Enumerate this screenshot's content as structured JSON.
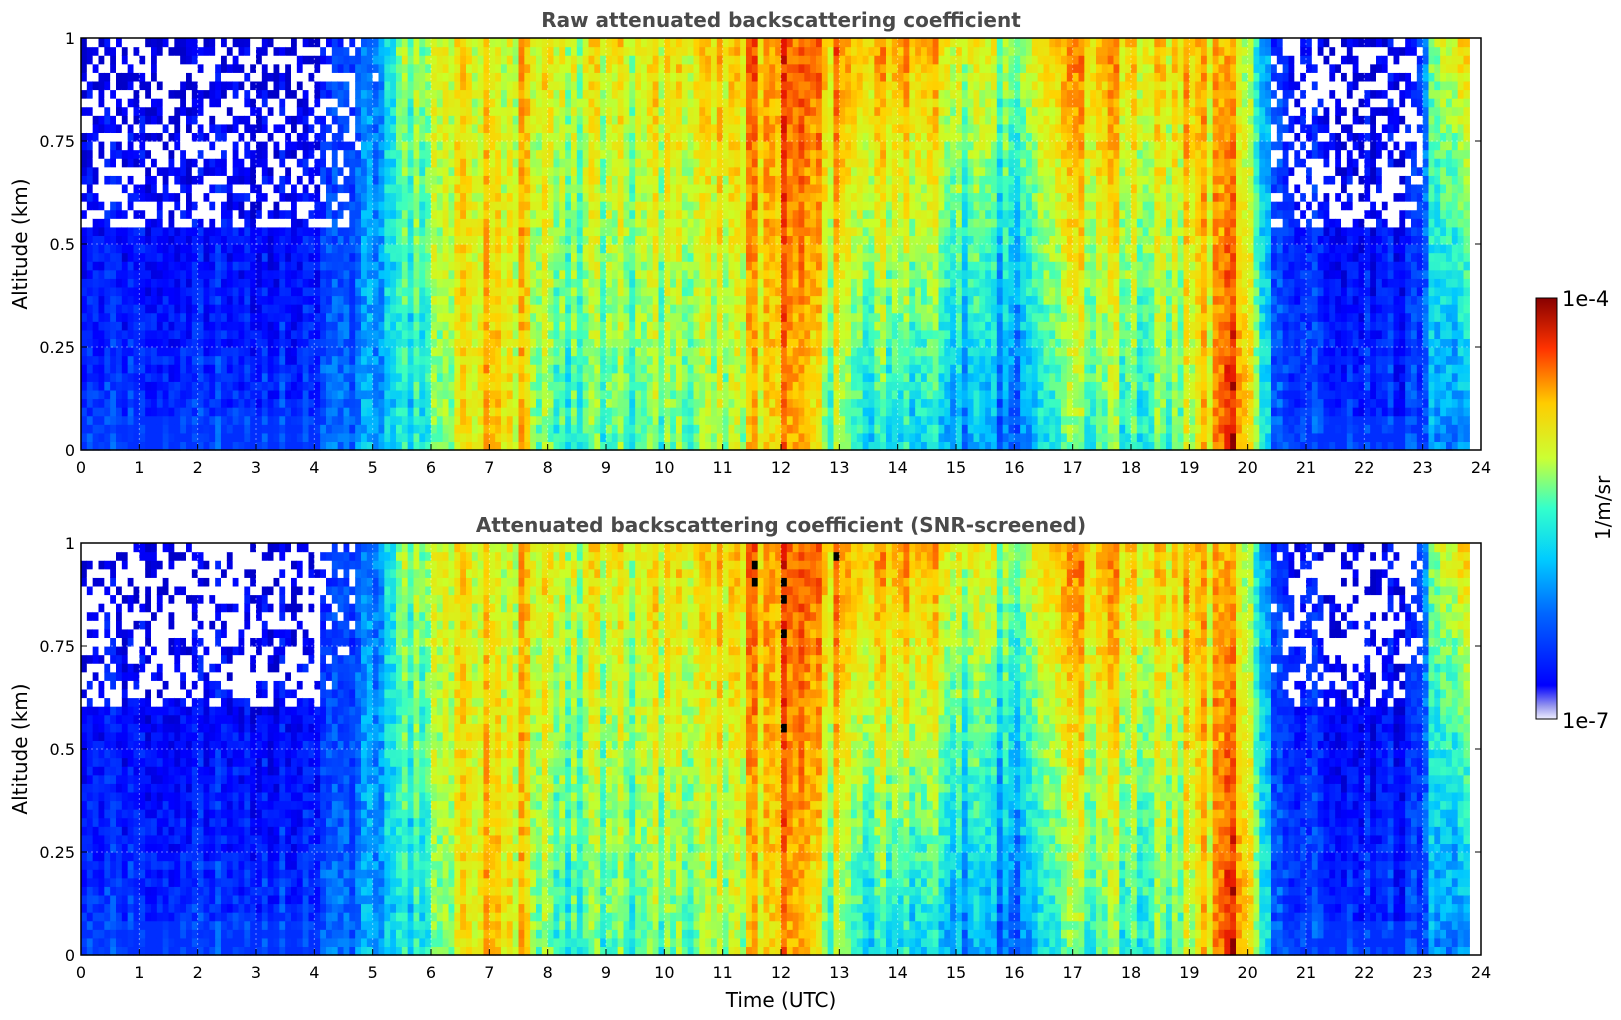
{
  "chart_data": [
    {
      "type": "heatmap",
      "title": "Raw attenuated backscattering coefficient",
      "xlabel": "",
      "ylabel": "Altitude (km)",
      "xlim": [
        0,
        24
      ],
      "ylim": [
        0,
        1
      ],
      "x_ticks": [
        "0",
        "1",
        "2",
        "3",
        "4",
        "5",
        "6",
        "7",
        "8",
        "9",
        "10",
        "11",
        "12",
        "13",
        "14",
        "15",
        "16",
        "17",
        "18",
        "19",
        "20",
        "21",
        "22",
        "23",
        "24"
      ],
      "y_ticks": [
        "0",
        "0.25",
        "0.5",
        "0.75",
        "1"
      ],
      "grid": true,
      "screened": false,
      "column_profile": [
        {
          "t": 0.0,
          "base": 1.5,
          "top": 0.2,
          "scale": 0.35
        },
        {
          "t": 4.0,
          "base": 1.6,
          "top": 0.3,
          "scale": 0.45
        },
        {
          "t": 5.0,
          "base": 3.0,
          "top": 2.5,
          "scale": 0.6
        },
        {
          "t": 5.6,
          "base": 3.5,
          "top": 5.0,
          "scale": 0.7
        },
        {
          "t": 6.2,
          "base": 4.5,
          "top": 5.5,
          "scale": 0.8
        },
        {
          "t": 6.8,
          "base": 6.5,
          "top": 6.0,
          "scale": 0.9
        },
        {
          "t": 7.2,
          "base": 7.0,
          "top": 6.0,
          "scale": 0.9
        },
        {
          "t": 8.0,
          "base": 4.5,
          "top": 6.0,
          "scale": 0.8
        },
        {
          "t": 9.0,
          "base": 4.0,
          "top": 5.5,
          "scale": 0.8
        },
        {
          "t": 10.0,
          "base": 4.5,
          "top": 6.0,
          "scale": 0.8
        },
        {
          "t": 11.0,
          "base": 5.0,
          "top": 6.5,
          "scale": 0.8
        },
        {
          "t": 12.2,
          "base": 7.0,
          "top": 7.5,
          "scale": 0.9
        },
        {
          "t": 13.0,
          "base": 4.5,
          "top": 7.0,
          "scale": 0.9
        },
        {
          "t": 14.0,
          "base": 3.5,
          "top": 7.0,
          "scale": 0.9
        },
        {
          "t": 15.0,
          "base": 3.0,
          "top": 6.0,
          "scale": 0.8
        },
        {
          "t": 16.0,
          "base": 2.0,
          "top": 5.0,
          "scale": 0.7
        },
        {
          "t": 17.0,
          "base": 4.5,
          "top": 7.0,
          "scale": 0.8
        },
        {
          "t": 18.0,
          "base": 4.0,
          "top": 6.5,
          "scale": 0.8
        },
        {
          "t": 19.0,
          "base": 5.0,
          "top": 6.5,
          "scale": 0.8
        },
        {
          "t": 19.8,
          "base": 8.0,
          "top": 6.0,
          "scale": 0.9
        },
        {
          "t": 20.5,
          "base": 2.0,
          "top": 1.5,
          "scale": 0.5
        },
        {
          "t": 21.5,
          "base": 1.5,
          "top": 0.3,
          "scale": 0.4
        },
        {
          "t": 22.8,
          "base": 1.5,
          "top": 0.4,
          "scale": 0.45
        },
        {
          "t": 23.3,
          "base": 3.0,
          "top": 6.0,
          "scale": 0.7
        },
        {
          "t": 23.8,
          "base": 2.0,
          "top": 6.0,
          "scale": 0.7
        }
      ]
    },
    {
      "type": "heatmap",
      "title": "Attenuated backscattering coefficient (SNR-screened)",
      "xlabel": "Time (UTC)",
      "ylabel": "Altitude (km)",
      "xlim": [
        0,
        24
      ],
      "ylim": [
        0,
        1
      ],
      "x_ticks": [
        "0",
        "1",
        "2",
        "3",
        "4",
        "5",
        "6",
        "7",
        "8",
        "9",
        "10",
        "11",
        "12",
        "13",
        "14",
        "15",
        "16",
        "17",
        "18",
        "19",
        "20",
        "21",
        "22",
        "23",
        "24"
      ],
      "y_ticks": [
        "0",
        "0.25",
        "0.5",
        "0.75",
        "1"
      ],
      "grid": true,
      "screened": true
    }
  ],
  "colorbar": {
    "label": "1/m/sr",
    "max_label": "1e-4",
    "min_label": "1e-7",
    "colormap": "jet",
    "scale": "log"
  },
  "colors": {
    "title": "#4a4a4a",
    "background": "#ffffff",
    "grid": "#b0b0b0"
  }
}
